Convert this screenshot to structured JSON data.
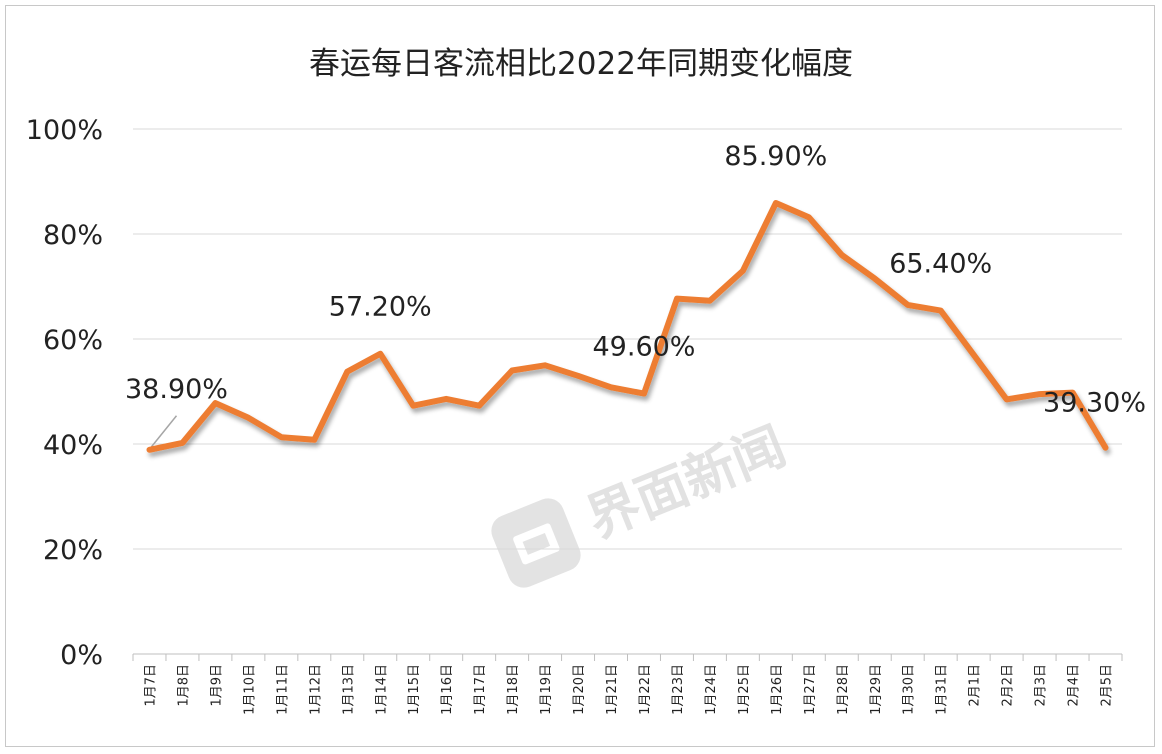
{
  "chart_data": {
    "type": "line",
    "title": "春运每日客流相比2022年同期变化幅度",
    "xlabel": "",
    "ylabel": "",
    "ylim": [
      0,
      100
    ],
    "yticks": [
      "0%",
      "20%",
      "40%",
      "60%",
      "80%",
      "100%"
    ],
    "grid": true,
    "legend": "none",
    "categories": [
      "1月7日",
      "1月8日",
      "1月9日",
      "1月10日",
      "1月11日",
      "1月12日",
      "1月13日",
      "1月14日",
      "1月15日",
      "1月16日",
      "1月17日",
      "1月18日",
      "1月19日",
      "1月20日",
      "1月21日",
      "1月22日",
      "1月23日",
      "1月24日",
      "1月25日",
      "1月26日",
      "1月27日",
      "1月28日",
      "1月29日",
      "1月30日",
      "1月31日",
      "2月1日",
      "2月2日",
      "2月3日",
      "2月4日",
      "2月5日"
    ],
    "series": [
      {
        "values": [
          38.9,
          40.2,
          47.8,
          45.0,
          41.3,
          40.8,
          53.8,
          57.2,
          47.3,
          48.6,
          47.3,
          54.0,
          55.0,
          53.0,
          50.8,
          49.6,
          67.7,
          67.3,
          73.0,
          85.9,
          83.2,
          76.0,
          71.5,
          66.5,
          65.4,
          57.0,
          48.5,
          49.5,
          49.8,
          39.3
        ]
      }
    ],
    "data_labels": [
      {
        "index": 0,
        "text": "38.90%"
      },
      {
        "index": 7,
        "text": "57.20%"
      },
      {
        "index": 15,
        "text": "49.60%"
      },
      {
        "index": 19,
        "text": "85.90%"
      },
      {
        "index": 24,
        "text": "65.40%"
      },
      {
        "index": 29,
        "text": "39.30%"
      }
    ],
    "line_color": "#ed7d31",
    "watermark": "界面新闻"
  }
}
